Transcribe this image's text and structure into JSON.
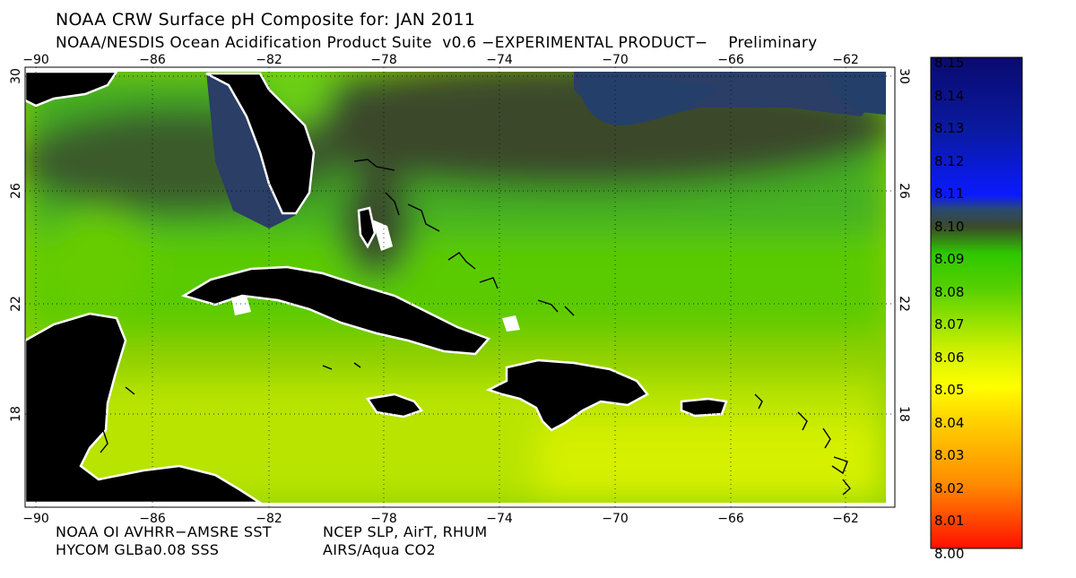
{
  "header": {
    "title": "NOAA CRW Surface pH Composite for: JAN 2011",
    "subtitle": "NOAA/NESDIS Ocean Acidification Product Suite  v0.6 −EXPERIMENTAL PRODUCT−    Preliminary"
  },
  "map": {
    "lon_ticks": [
      "−90",
      "−86",
      "−82",
      "−78",
      "−74",
      "−70",
      "−66",
      "−62"
    ],
    "lat_ticks": [
      "30",
      "26",
      "22",
      "18"
    ],
    "lon_range": [
      -90.5,
      -60.5
    ],
    "lat_range": [
      15,
      30.2
    ]
  },
  "colorbar": {
    "labels": [
      "8.15",
      "8.14",
      "8.13",
      "8.12",
      "8.11",
      "8.10",
      "8.09",
      "8.08",
      "8.07",
      "8.06",
      "8.05",
      "8.04",
      "8.03",
      "8.02",
      "8.01",
      "8.00"
    ],
    "min": 8.0,
    "max": 8.15,
    "colors": {
      "8.00": "#ff1000",
      "8.02": "#ff8a00",
      "8.04": "#ffd800",
      "8.05": "#ffff00",
      "8.06": "#d2f000",
      "8.07": "#8ee000",
      "8.08": "#55d000",
      "8.09": "#2fc800",
      "8.10": "#3a4a2a",
      "8.11": "#0a1aff",
      "8.15": "#0a0a70"
    }
  },
  "footer": {
    "credit_1a": "NOAA OI AVHRR−AMSRE SST",
    "credit_1b": "NCEP SLP, AirT, RHUM",
    "credit_2a": "HYCOM GLBa0.08 SSS",
    "credit_2b": "AIRS/Aqua CO2"
  }
}
